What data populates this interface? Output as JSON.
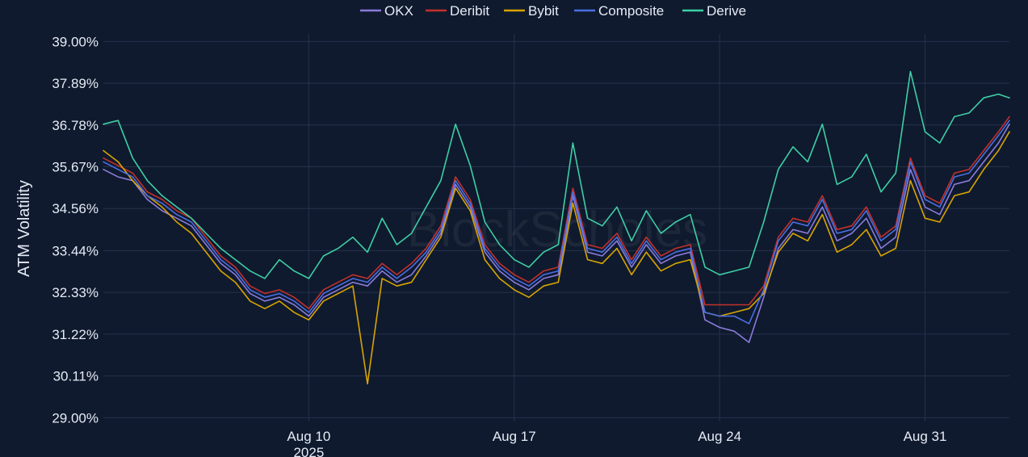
{
  "chart_data": {
    "type": "line",
    "title": "",
    "xlabel": "",
    "ylabel": "ATM Volatility",
    "watermark": "BlockScholes",
    "legend_position": "top-center",
    "grid": true,
    "background": "#0f1a2e",
    "grid_color": "#26324d",
    "ylim": [
      28.9,
      39.2
    ],
    "xlim": [
      "2025-08-03T00:00",
      "2025-09-02T21:00"
    ],
    "y_ticks": [
      {
        "value": 29.0,
        "label": "29.00%"
      },
      {
        "value": 30.11,
        "label": "30.11%"
      },
      {
        "value": 31.22,
        "label": "31.22%"
      },
      {
        "value": 32.33,
        "label": "32.33%"
      },
      {
        "value": 33.44,
        "label": "33.44%"
      },
      {
        "value": 34.56,
        "label": "34.56%"
      },
      {
        "value": 35.67,
        "label": "35.67%"
      },
      {
        "value": 36.78,
        "label": "36.78%"
      },
      {
        "value": 37.89,
        "label": "37.89%"
      },
      {
        "value": 39.0,
        "label": "39.00%"
      }
    ],
    "x_ticks": [
      {
        "value": "2025-08-10",
        "label": "Aug 10",
        "sublabel": "2025"
      },
      {
        "value": "2025-08-17",
        "label": "Aug 17",
        "sublabel": ""
      },
      {
        "value": "2025-08-24",
        "label": "Aug 24",
        "sublabel": ""
      },
      {
        "value": "2025-08-31",
        "label": "Aug 31",
        "sublabel": ""
      }
    ],
    "x": [
      "2025-08-03T00:00",
      "2025-08-03T12:00",
      "2025-08-04T00:00",
      "2025-08-04T12:00",
      "2025-08-05T00:00",
      "2025-08-05T12:00",
      "2025-08-06T00:00",
      "2025-08-06T12:00",
      "2025-08-07T00:00",
      "2025-08-07T12:00",
      "2025-08-08T00:00",
      "2025-08-08T12:00",
      "2025-08-09T00:00",
      "2025-08-09T12:00",
      "2025-08-10T00:00",
      "2025-08-10T12:00",
      "2025-08-11T00:00",
      "2025-08-11T12:00",
      "2025-08-12T00:00",
      "2025-08-12T12:00",
      "2025-08-13T00:00",
      "2025-08-13T12:00",
      "2025-08-14T00:00",
      "2025-08-14T12:00",
      "2025-08-15T00:00",
      "2025-08-15T12:00",
      "2025-08-16T00:00",
      "2025-08-16T12:00",
      "2025-08-17T00:00",
      "2025-08-17T12:00",
      "2025-08-18T00:00",
      "2025-08-18T12:00",
      "2025-08-19T00:00",
      "2025-08-19T12:00",
      "2025-08-20T00:00",
      "2025-08-20T12:00",
      "2025-08-21T00:00",
      "2025-08-21T12:00",
      "2025-08-22T00:00",
      "2025-08-22T12:00",
      "2025-08-23T00:00",
      "2025-08-23T12:00",
      "2025-08-24T00:00",
      "2025-08-24T12:00",
      "2025-08-25T00:00",
      "2025-08-25T12:00",
      "2025-08-26T00:00",
      "2025-08-26T12:00",
      "2025-08-27T00:00",
      "2025-08-27T12:00",
      "2025-08-28T00:00",
      "2025-08-28T12:00",
      "2025-08-29T00:00",
      "2025-08-29T12:00",
      "2025-08-30T00:00",
      "2025-08-30T12:00",
      "2025-08-31T00:00",
      "2025-08-31T12:00",
      "2025-09-01T00:00",
      "2025-09-01T12:00",
      "2025-09-02T00:00",
      "2025-09-02T12:00",
      "2025-09-02T21:00"
    ],
    "series": [
      {
        "name": "OKX",
        "color": "#8b7bdb",
        "values": [
          35.6,
          35.4,
          35.3,
          34.8,
          34.5,
          34.3,
          34.1,
          33.6,
          33.1,
          32.8,
          32.3,
          32.1,
          32.2,
          32.0,
          31.7,
          32.2,
          32.4,
          32.6,
          32.5,
          32.9,
          32.6,
          32.8,
          33.3,
          33.9,
          35.2,
          34.6,
          33.4,
          32.9,
          32.6,
          32.4,
          32.7,
          32.8,
          34.9,
          33.4,
          33.3,
          33.7,
          33.0,
          33.6,
          33.1,
          33.3,
          33.4,
          31.6,
          31.4,
          31.3,
          31.0,
          32.2,
          33.5,
          34.0,
          33.9,
          34.6,
          33.7,
          33.9,
          34.3,
          33.5,
          33.8,
          35.6,
          34.6,
          34.4,
          35.2,
          35.3,
          35.8,
          36.3,
          36.8
        ]
      },
      {
        "name": "Deribit",
        "color": "#c4302b",
        "values": [
          35.9,
          35.7,
          35.5,
          35.0,
          34.8,
          34.5,
          34.3,
          33.8,
          33.3,
          33.0,
          32.5,
          32.3,
          32.4,
          32.2,
          31.9,
          32.4,
          32.6,
          32.8,
          32.7,
          33.1,
          32.8,
          33.1,
          33.5,
          34.1,
          35.4,
          34.8,
          33.6,
          33.1,
          32.8,
          32.6,
          32.9,
          33.0,
          35.1,
          33.6,
          33.5,
          33.9,
          33.2,
          33.8,
          33.3,
          33.5,
          33.6,
          32.0,
          32.0,
          32.0,
          32.0,
          32.5,
          33.8,
          34.3,
          34.2,
          34.9,
          34.0,
          34.1,
          34.6,
          33.8,
          34.1,
          35.9,
          34.9,
          34.7,
          35.5,
          35.6,
          36.1,
          36.6,
          37.0
        ]
      },
      {
        "name": "Bybit",
        "color": "#d9a400",
        "values": [
          36.1,
          35.8,
          35.3,
          34.9,
          34.6,
          34.2,
          33.9,
          33.4,
          32.9,
          32.6,
          32.1,
          31.9,
          32.1,
          31.8,
          31.6,
          32.1,
          32.3,
          32.5,
          29.9,
          32.7,
          32.5,
          32.6,
          33.2,
          33.8,
          35.1,
          34.5,
          33.2,
          32.7,
          32.4,
          32.2,
          32.5,
          32.6,
          34.7,
          33.2,
          33.1,
          33.5,
          32.8,
          33.4,
          32.9,
          33.1,
          33.2,
          31.8,
          31.7,
          31.8,
          31.9,
          32.3,
          33.4,
          33.9,
          33.7,
          34.4,
          33.4,
          33.6,
          34.0,
          33.3,
          33.5,
          35.3,
          34.3,
          34.2,
          34.9,
          35.0,
          35.6,
          36.1,
          36.6
        ]
      },
      {
        "name": "Composite",
        "color": "#4a6fe3",
        "values": [
          35.8,
          35.6,
          35.4,
          34.9,
          34.7,
          34.4,
          34.2,
          33.7,
          33.2,
          32.9,
          32.4,
          32.2,
          32.3,
          32.1,
          31.8,
          32.3,
          32.5,
          32.7,
          32.6,
          33.0,
          32.7,
          33.0,
          33.4,
          34.0,
          35.3,
          34.7,
          33.5,
          33.0,
          32.7,
          32.5,
          32.8,
          32.9,
          35.0,
          33.5,
          33.4,
          33.8,
          33.1,
          33.7,
          33.2,
          33.4,
          33.5,
          31.8,
          31.7,
          31.7,
          31.5,
          32.4,
          33.7,
          34.2,
          34.1,
          34.8,
          33.9,
          34.0,
          34.5,
          33.7,
          34.0,
          35.8,
          34.8,
          34.6,
          35.4,
          35.5,
          36.0,
          36.5,
          36.9
        ]
      },
      {
        "name": "Derive",
        "color": "#3ecfa5",
        "values": [
          36.8,
          36.9,
          35.9,
          35.3,
          34.9,
          34.6,
          34.3,
          33.9,
          33.5,
          33.2,
          32.9,
          32.7,
          33.2,
          32.9,
          32.7,
          33.3,
          33.5,
          33.8,
          33.4,
          34.3,
          33.6,
          33.9,
          34.6,
          35.3,
          36.8,
          35.7,
          34.2,
          33.6,
          33.2,
          33.0,
          33.4,
          33.6,
          36.3,
          34.3,
          34.1,
          34.6,
          33.7,
          34.5,
          33.9,
          34.2,
          34.4,
          33.0,
          32.8,
          32.9,
          33.0,
          34.2,
          35.6,
          36.2,
          35.8,
          36.8,
          35.2,
          35.4,
          36.0,
          35.0,
          35.5,
          38.2,
          36.6,
          36.3,
          37.0,
          37.1,
          37.5,
          37.6,
          37.5
        ]
      }
    ]
  }
}
